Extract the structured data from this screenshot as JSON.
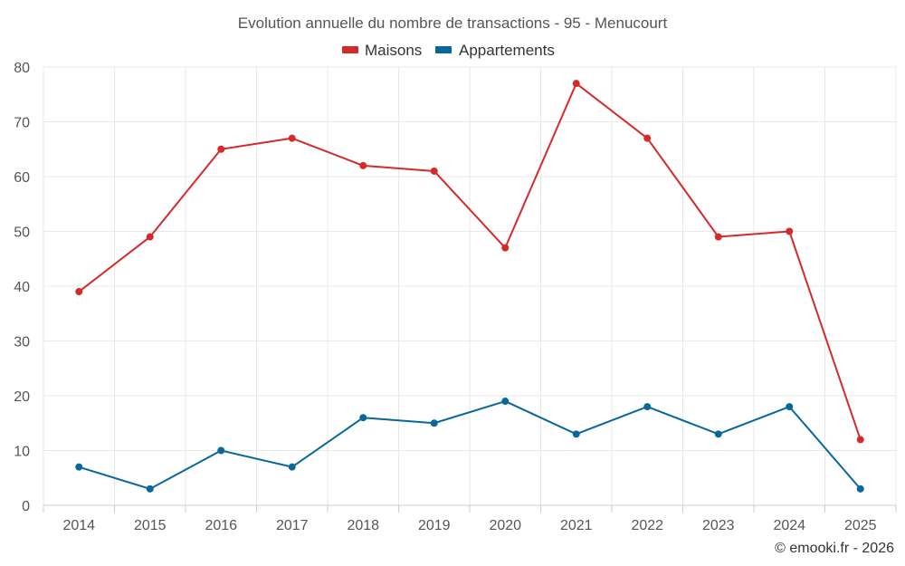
{
  "chart_data": {
    "type": "line",
    "title": "Evolution annuelle du nombre de transactions - 95 - Menucourt",
    "categories": [
      "2014",
      "2015",
      "2016",
      "2017",
      "2018",
      "2019",
      "2020",
      "2021",
      "2022",
      "2023",
      "2024",
      "2025"
    ],
    "series": [
      {
        "name": "Maisons",
        "color": "#d42a2a",
        "values": [
          39,
          49,
          65,
          67,
          62,
          61,
          47,
          77,
          67,
          49,
          50,
          12
        ]
      },
      {
        "name": "Appartements",
        "color": "#08689a",
        "values": [
          7,
          3,
          10,
          7,
          16,
          15,
          19,
          13,
          18,
          13,
          18,
          3
        ]
      }
    ],
    "ylim": [
      0,
      80
    ],
    "yticks": [
      "0",
      "10",
      "20",
      "30",
      "40",
      "50",
      "60",
      "70",
      "80"
    ],
    "xlabel": "",
    "ylabel": "",
    "grid": true,
    "legend_position": "top-center"
  },
  "credit": "© emooki.fr - 2026"
}
